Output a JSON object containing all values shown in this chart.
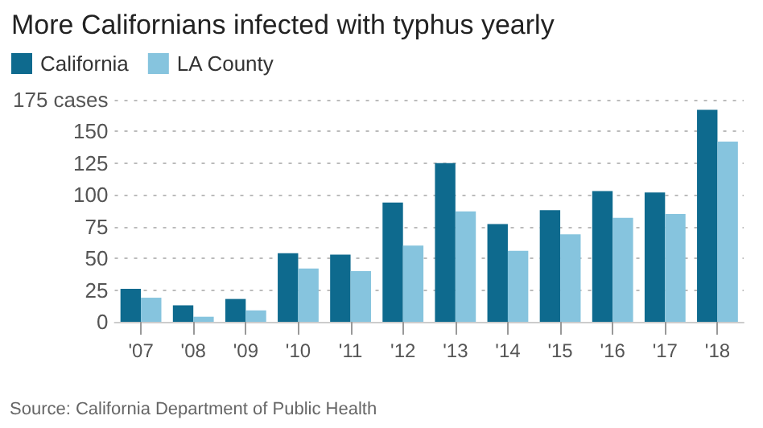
{
  "chart_data": {
    "type": "bar",
    "title": "More Californians infected with typhus yearly",
    "categories": [
      "'07",
      "'08",
      "'09",
      "'10",
      "'11",
      "'12",
      "'13",
      "'14",
      "'15",
      "'16",
      "'17",
      "'18"
    ],
    "series": [
      {
        "name": "California",
        "color": "#0e6a8e",
        "values": [
          26,
          13,
          18,
          54,
          53,
          94,
          125,
          77,
          88,
          103,
          102,
          167
        ]
      },
      {
        "name": "LA County",
        "color": "#86c4de",
        "values": [
          19,
          4,
          9,
          42,
          40,
          60,
          87,
          56,
          69,
          82,
          85,
          142
        ]
      }
    ],
    "ylim": [
      0,
      175
    ],
    "yticks": [
      0,
      25,
      50,
      75,
      100,
      125,
      150,
      {
        "value": 175,
        "label": "175 cases"
      }
    ],
    "grid": "y",
    "legend": "top left",
    "annotations": [
      "Source: California Department of Public Health"
    ]
  }
}
